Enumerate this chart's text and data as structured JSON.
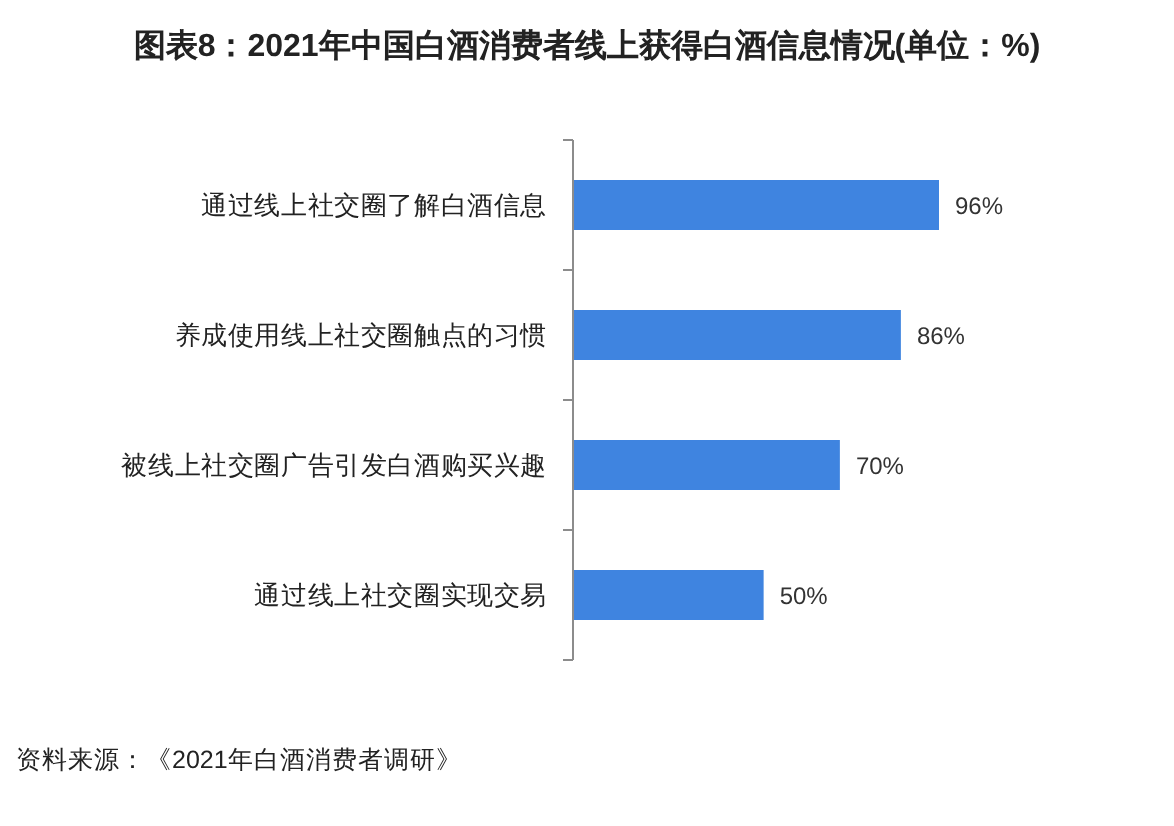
{
  "chart_data": {
    "type": "bar",
    "orientation": "horizontal",
    "title": "图表8：2021年中国白酒消费者线上获得白酒信息情况(单位：%)",
    "categories": [
      "通过线上社交圈了解白酒信息",
      "养成使用线上社交圈触点的习惯",
      "被线上社交圈广告引发白酒购买兴趣",
      "通过线上社交圈实现交易"
    ],
    "values": [
      96,
      86,
      70,
      50
    ],
    "value_labels": [
      "96%",
      "86%",
      "70%",
      "50%"
    ],
    "color": "#3f84e0",
    "annotations": [
      "资料来源：《2021年白酒消费者调研》"
    ]
  }
}
